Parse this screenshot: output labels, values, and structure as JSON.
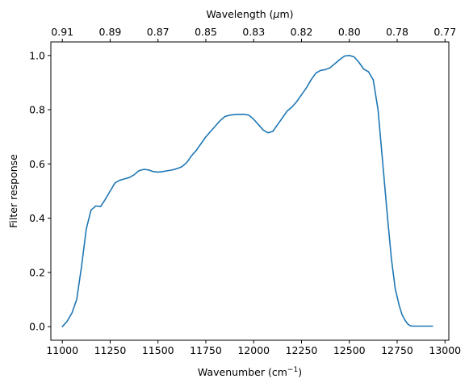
{
  "chart_data": {
    "type": "line",
    "xlabel": "Wavenumber (cm",
    "xlabel_superscript": "−1",
    "xlabel_suffix": ")",
    "ylabel": "Filter response",
    "top_xlabel": "Wavelength (",
    "top_xlabel_symbol": "μ",
    "top_xlabel_suffix": "m)",
    "xlim": [
      10940,
      13020
    ],
    "ylim": [
      -0.05,
      1.05
    ],
    "x_ticks": [
      {
        "value": 11000,
        "label": "11000"
      },
      {
        "value": 11250,
        "label": "11250"
      },
      {
        "value": 11500,
        "label": "11500"
      },
      {
        "value": 11750,
        "label": "11750"
      },
      {
        "value": 12000,
        "label": "12000"
      },
      {
        "value": 12250,
        "label": "12250"
      },
      {
        "value": 12500,
        "label": "12500"
      },
      {
        "value": 12750,
        "label": "12750"
      },
      {
        "value": 13000,
        "label": "13000"
      }
    ],
    "y_ticks": [
      {
        "value": 0.0,
        "label": "0.0"
      },
      {
        "value": 0.2,
        "label": "0.2"
      },
      {
        "value": 0.4,
        "label": "0.4"
      },
      {
        "value": 0.6,
        "label": "0.6"
      },
      {
        "value": 0.8,
        "label": "0.8"
      },
      {
        "value": 1.0,
        "label": "1.0"
      }
    ],
    "top_ticks": [
      {
        "value": 11000,
        "label": "0.91"
      },
      {
        "value": 11250,
        "label": "0.89"
      },
      {
        "value": 11500,
        "label": "0.87"
      },
      {
        "value": 11750,
        "label": "0.85"
      },
      {
        "value": 12000,
        "label": "0.83"
      },
      {
        "value": 12250,
        "label": "0.82"
      },
      {
        "value": 12500,
        "label": "0.80"
      },
      {
        "value": 12750,
        "label": "0.78"
      },
      {
        "value": 13000,
        "label": "0.77"
      }
    ],
    "grid": false,
    "line_color": "#1f77b4",
    "series": [
      {
        "x": [
          11000,
          11025,
          11050,
          11075,
          11100,
          11125,
          11150,
          11175,
          11200,
          11225,
          11250,
          11275,
          11300,
          11325,
          11350,
          11375,
          11400,
          11425,
          11450,
          11475,
          11500,
          11525,
          11550,
          11575,
          11600,
          11625,
          11650,
          11675,
          11700,
          11725,
          11750,
          11775,
          11800,
          11825,
          11850,
          11875,
          11900,
          11925,
          11950,
          11975,
          12000,
          12025,
          12050,
          12075,
          12100,
          12125,
          12150,
          12175,
          12200,
          12225,
          12250,
          12275,
          12300,
          12325,
          12350,
          12375,
          12400,
          12425,
          12450,
          12475,
          12500,
          12525,
          12550,
          12575,
          12600,
          12625,
          12650,
          12675,
          12700,
          12720,
          12740,
          12760,
          12775,
          12790,
          12805,
          12820,
          12835,
          12850,
          12870,
          12890,
          12910,
          12935
        ],
        "y": [
          0.0,
          0.02,
          0.05,
          0.1,
          0.22,
          0.36,
          0.43,
          0.445,
          0.443,
          0.47,
          0.5,
          0.53,
          0.54,
          0.545,
          0.55,
          0.56,
          0.575,
          0.58,
          0.578,
          0.572,
          0.57,
          0.572,
          0.575,
          0.578,
          0.583,
          0.59,
          0.605,
          0.63,
          0.65,
          0.675,
          0.7,
          0.72,
          0.74,
          0.76,
          0.775,
          0.78,
          0.782,
          0.783,
          0.783,
          0.78,
          0.765,
          0.745,
          0.725,
          0.715,
          0.72,
          0.745,
          0.77,
          0.795,
          0.81,
          0.83,
          0.855,
          0.88,
          0.91,
          0.935,
          0.945,
          0.948,
          0.955,
          0.97,
          0.985,
          0.998,
          1.0,
          0.995,
          0.975,
          0.95,
          0.94,
          0.91,
          0.8,
          0.6,
          0.4,
          0.25,
          0.14,
          0.08,
          0.045,
          0.025,
          0.01,
          0.003,
          0.002,
          0.002,
          0.002,
          0.002,
          0.002,
          0.002
        ]
      }
    ]
  }
}
